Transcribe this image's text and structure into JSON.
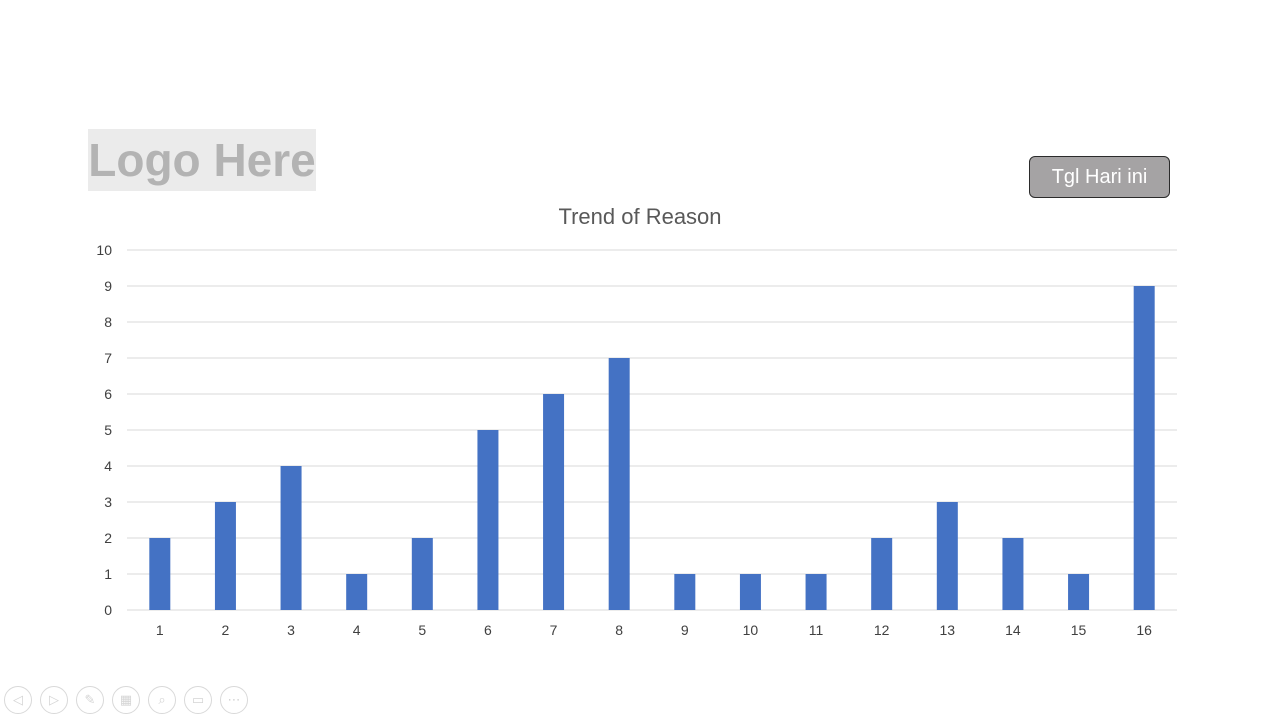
{
  "logo": {
    "text": "Logo Here"
  },
  "date_button": {
    "label": "Tgl Hari ini"
  },
  "chart_data": {
    "type": "bar",
    "title": "Trend of Reason",
    "xlabel": "",
    "ylabel": "",
    "categories": [
      "1",
      "2",
      "3",
      "4",
      "5",
      "6",
      "7",
      "8",
      "9",
      "10",
      "11",
      "12",
      "13",
      "14",
      "15",
      "16"
    ],
    "values": [
      2,
      3,
      4,
      1,
      2,
      5,
      6,
      7,
      1,
      1,
      1,
      2,
      3,
      2,
      1,
      9
    ],
    "ylim": [
      0,
      10
    ],
    "yticks": [
      0,
      1,
      2,
      3,
      4,
      5,
      6,
      7,
      8,
      9,
      10
    ],
    "grid": true,
    "legend": "none",
    "bar_color": "#4472c4",
    "grid_color": "#d9d9d9"
  },
  "slideshow_nav": [
    {
      "name": "previous-icon",
      "glyph": "◁"
    },
    {
      "name": "next-icon",
      "glyph": "▷"
    },
    {
      "name": "pen-icon",
      "glyph": "✎"
    },
    {
      "name": "slides-icon",
      "glyph": "▦"
    },
    {
      "name": "zoom-icon",
      "glyph": "⌕"
    },
    {
      "name": "subtitles-icon",
      "glyph": "▭"
    },
    {
      "name": "more-icon",
      "glyph": "⋯"
    }
  ]
}
